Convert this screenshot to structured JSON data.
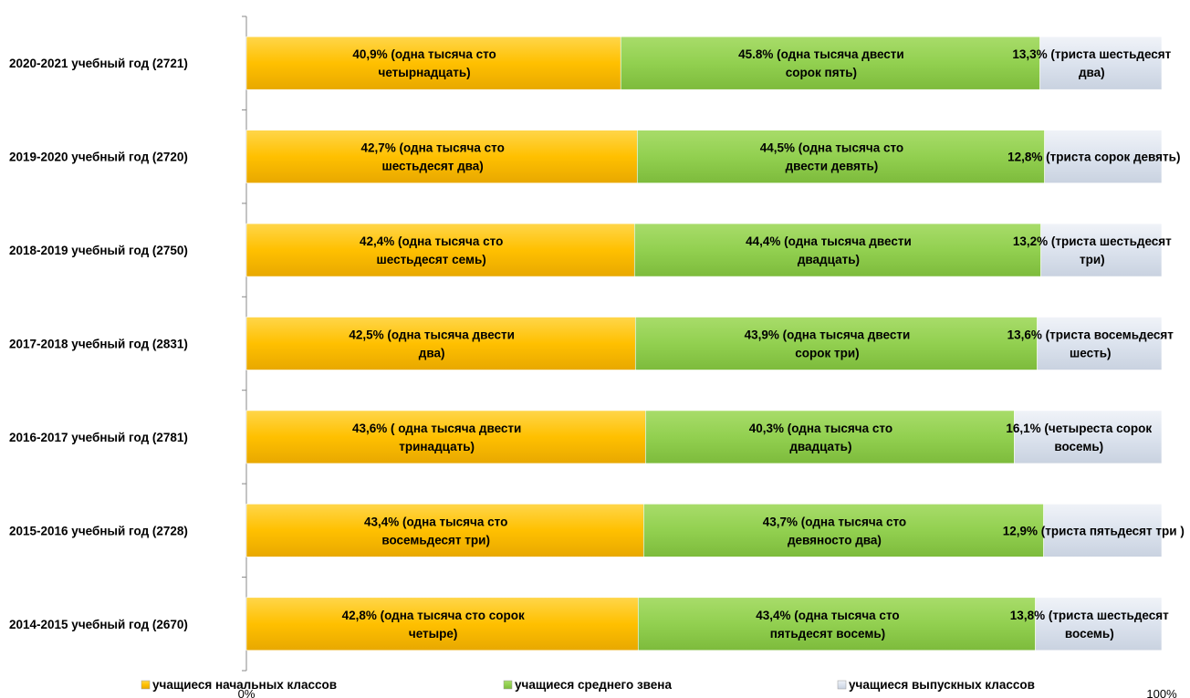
{
  "chart_data": {
    "type": "bar",
    "orientation": "horizontal",
    "stacked": "percent",
    "categories": [
      "2020-2021 учебный год (2721)",
      "2019-2020 учебный год (2720)",
      "2018-2019 учебный год (2750)",
      "2017-2018 учебный год (2831)",
      "2016-2017 учебный год (2781)",
      "2015-2016 учебный год (2728)",
      "2014-2015 учебный год (2670)"
    ],
    "series": [
      {
        "name": "учащиеся начальных классов",
        "color": "#FFC000",
        "values": [
          40.9,
          42.7,
          42.4,
          42.5,
          43.6,
          43.4,
          42.8
        ],
        "labels": [
          [
            "40,9% (одна тысяча сто",
            "четырнадцать)"
          ],
          [
            "42,7% (одна тысяча сто",
            "шестьдесят два)"
          ],
          [
            "42,4% (одна тысяча сто",
            "шестьдесят семь)"
          ],
          [
            "42,5% (одна тысяча двести",
            "два)"
          ],
          [
            "43,6% ( одна тысяча двести",
            "тринадцать)"
          ],
          [
            "43,4% (одна тысяча сто",
            "восемьдесят три)"
          ],
          [
            "42,8% (одна тысяча сто сорок",
            "четыре)"
          ]
        ]
      },
      {
        "name": "учащиеся среднего звена",
        "color": "#92D050",
        "values": [
          45.8,
          44.5,
          44.4,
          43.9,
          40.3,
          43.7,
          43.4
        ],
        "labels": [
          [
            "45.8% (одна тысяча двести",
            "сорок пять)"
          ],
          [
            "44,5% (одна тысяча сто",
            "двести девять)"
          ],
          [
            "44,4% (одна тысяча двести",
            "двадцать)"
          ],
          [
            "43,9% (одна тысяча двести",
            "сорок три)"
          ],
          [
            "40,3% (одна тысяча сто",
            "двадцать)"
          ],
          [
            "43,7% (одна тысяча сто",
            "девяносто два)"
          ],
          [
            "43,4% (одна тысяча сто",
            "пятьдесят восемь)"
          ]
        ]
      },
      {
        "name": "учащиеся выпускных классов",
        "color": "#DCE3EE",
        "values": [
          13.3,
          12.8,
          13.2,
          13.6,
          16.1,
          12.9,
          13.8
        ],
        "labels": [
          [
            "13,3% (триста шестьдесят",
            "два)"
          ],
          [
            "12,8% (триста сорок девять)"
          ],
          [
            "13,2% (триста шестьдесят",
            "три)"
          ],
          [
            "13,6% (триста восемьдесят",
            "шесть)"
          ],
          [
            "16,1% (четыреста сорок",
            "восемь)"
          ],
          [
            "12,9% (триста пятьдесят три )"
          ],
          [
            "13,8% (триста шестьдесят",
            "восемь)"
          ]
        ]
      }
    ],
    "x_ticks": [
      "0%",
      "100%"
    ],
    "xlim": [
      0,
      100
    ],
    "legend_position": "bottom",
    "grid": false
  }
}
